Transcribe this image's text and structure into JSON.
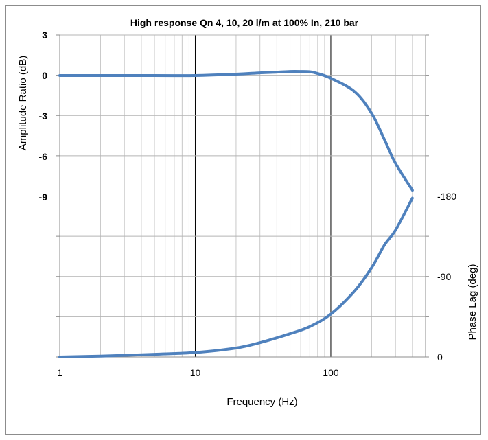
{
  "chart_data": {
    "type": "line",
    "title": "High response Qn 4, 10, 20 l/m at 100% In, 210 bar",
    "xlabel": "Frequency (Hz)",
    "ylabel_left": "Amplitude Ratio (dB)",
    "ylabel_right": "Phase Lag (deg)",
    "x_scale": "log",
    "xlim": [
      1,
      500
    ],
    "x_ticks": [
      "1",
      "10",
      "100"
    ],
    "y_left_ticks": [
      "3",
      "0",
      "-3",
      "-6",
      "-9"
    ],
    "y_right_ticks": [
      "-180",
      "-90",
      "0"
    ],
    "grid": true,
    "line_color": "#4F81BD",
    "series": [
      {
        "axis": "left",
        "x": [
          1,
          5,
          10,
          20,
          30,
          40,
          50,
          60,
          70,
          80,
          100,
          150,
          200,
          250,
          300,
          400
        ],
        "y": [
          0,
          0,
          0,
          0.1,
          0.2,
          0.25,
          0.3,
          0.3,
          0.28,
          0.15,
          -0.2,
          -1.2,
          -2.8,
          -4.8,
          -6.5,
          -8.5
        ]
      },
      {
        "axis": "right",
        "x": [
          1,
          2,
          5,
          10,
          20,
          30,
          50,
          70,
          100,
          150,
          200,
          250,
          300,
          400
        ],
        "y": [
          0,
          -1,
          -3,
          -5,
          -10,
          -16,
          -26,
          -34,
          -48,
          -74,
          -100,
          -126,
          -142,
          -178
        ]
      }
    ]
  }
}
